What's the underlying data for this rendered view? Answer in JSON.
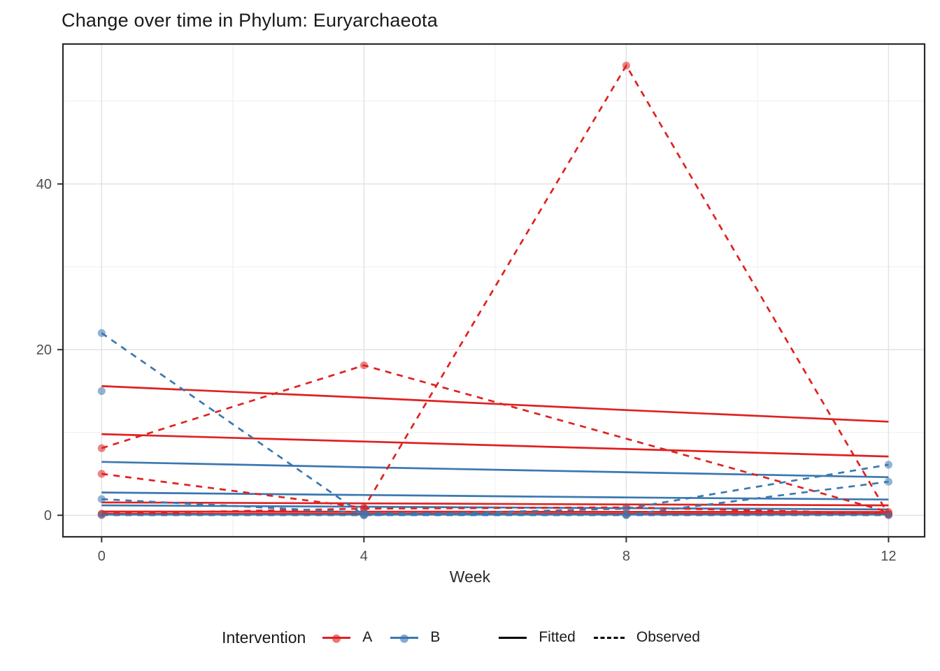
{
  "chart_data": {
    "type": "line",
    "title": "Change over time in Phylum: Euryarchaeota",
    "xlabel": "Week",
    "ylabel": "",
    "x": [
      0,
      4,
      8,
      12
    ],
    "xticks": [
      0,
      4,
      8,
      12
    ],
    "yticks": [
      0,
      20,
      40
    ],
    "minor_xticks": [
      2,
      6,
      10
    ],
    "minor_yticks": [
      10,
      30,
      50
    ],
    "xlim": [
      -0.59,
      12.55
    ],
    "ylim": [
      -2.6,
      56.9
    ],
    "grid": "on",
    "legend_position": "bottom",
    "colors": {
      "A": "#DE2221",
      "B": "#3A78B0",
      "point_fill_opacity": 0.55,
      "axis_text": "#4D4D4D",
      "grid_major": "#E3E3E3",
      "grid_minor": "#F1F1F1",
      "panel_border": "#2B2B2B"
    },
    "legend": {
      "title": "Intervention",
      "groups": [
        {
          "label": "A",
          "color": "#DE2221"
        },
        {
          "label": "B",
          "color": "#3A78B0"
        }
      ],
      "linetypes": [
        {
          "label": "Fitted",
          "style": "solid"
        },
        {
          "label": "Observed",
          "style": "dashed"
        }
      ]
    },
    "series": [
      {
        "group": "A",
        "kind": "fitted",
        "values": [
          15.6,
          14.2,
          12.7,
          11.3
        ]
      },
      {
        "group": "A",
        "kind": "fitted",
        "values": [
          9.8,
          8.9,
          8.0,
          7.1
        ]
      },
      {
        "group": "A",
        "kind": "fitted",
        "values": [
          1.55,
          1.43,
          1.31,
          1.2
        ]
      },
      {
        "group": "A",
        "kind": "fitted",
        "values": [
          0.45,
          0.43,
          0.41,
          0.4
        ]
      },
      {
        "group": "A",
        "kind": "fitted",
        "values": [
          0.18,
          0.18,
          0.18,
          0.18
        ]
      },
      {
        "group": "B",
        "kind": "fitted",
        "values": [
          6.45,
          5.8,
          5.2,
          4.6
        ]
      },
      {
        "group": "B",
        "kind": "fitted",
        "values": [
          2.75,
          2.45,
          2.15,
          1.9
        ]
      },
      {
        "group": "B",
        "kind": "fitted",
        "values": [
          1.2,
          1.03,
          0.86,
          0.7
        ]
      },
      {
        "group": "B",
        "kind": "fitted",
        "values": [
          0.08,
          0.08,
          0.08,
          0.08
        ]
      },
      {
        "group": "A",
        "kind": "observed",
        "values": [
          8.1,
          18.1,
          null,
          0.4
        ]
      },
      {
        "group": "A",
        "kind": "observed",
        "values": [
          5.0,
          0.9,
          54.3,
          0.05
        ]
      },
      {
        "group": "A",
        "kind": "observed",
        "values": [
          0.2,
          0.8,
          0.95,
          0.2
        ]
      },
      {
        "group": "A",
        "kind": "observed",
        "values": [
          0.1,
          0.1,
          0.1,
          0.1
        ]
      },
      {
        "group": "B",
        "kind": "observed",
        "values": [
          22.0,
          0.0,
          0.8,
          6.1
        ]
      },
      {
        "group": "B",
        "kind": "observed",
        "values": [
          1.95,
          0.3,
          0.05,
          4.05
        ]
      },
      {
        "group": "B",
        "kind": "observed",
        "values": [
          15.0,
          null,
          null,
          null
        ]
      },
      {
        "group": "B",
        "kind": "observed",
        "values": [
          0.02,
          0.02,
          0.02,
          0.02
        ]
      }
    ]
  }
}
